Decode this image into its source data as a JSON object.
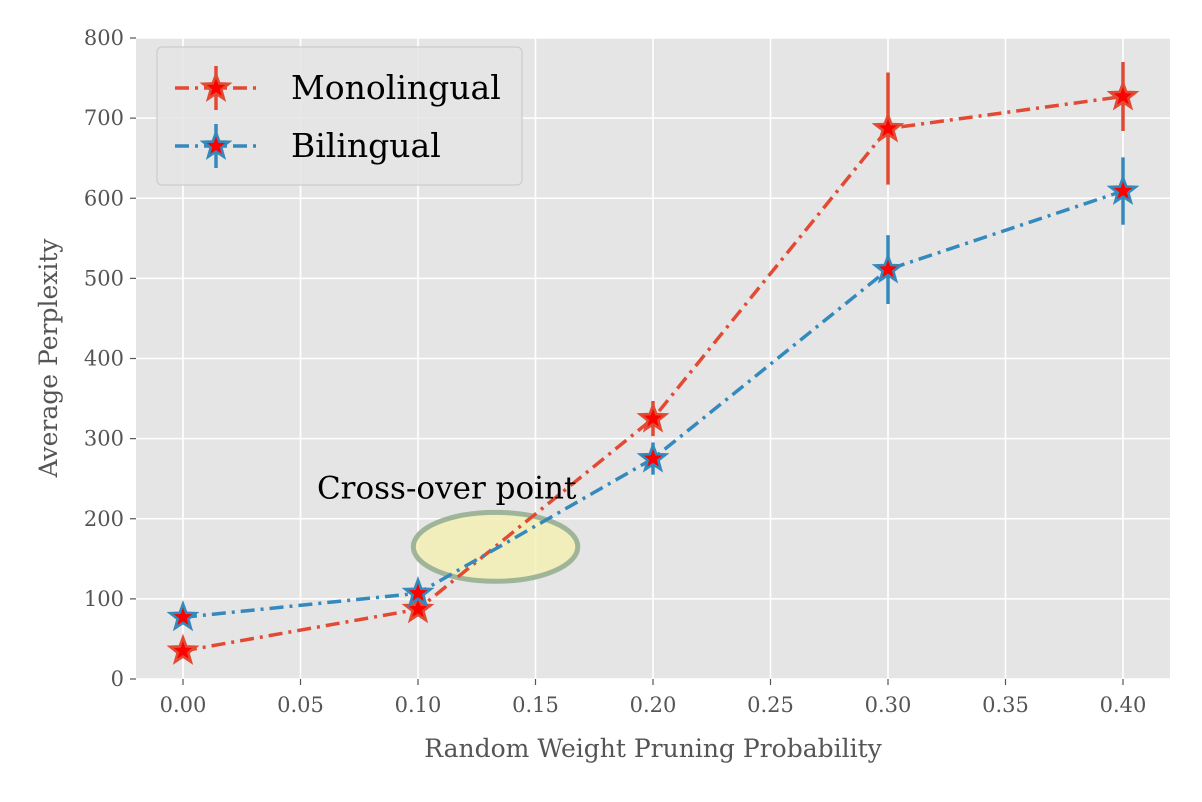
{
  "chart_data": {
    "type": "line",
    "xlabel": "Random Weight Pruning Probability",
    "ylabel": "Average Perplexity",
    "xlim": [
      -0.02,
      0.42
    ],
    "ylim": [
      0,
      800
    ],
    "x_ticks": [
      "0.00",
      "0.05",
      "0.10",
      "0.15",
      "0.20",
      "0.25",
      "0.30",
      "0.35",
      "0.40"
    ],
    "y_ticks": [
      "0",
      "100",
      "200",
      "300",
      "400",
      "500",
      "600",
      "700",
      "800"
    ],
    "grid": true,
    "legend_position": "top-left",
    "series": [
      {
        "name": "Monolingual",
        "color": "#E24A33",
        "marker": "star",
        "marker_fill": "#ff0000",
        "linestyle": "dash-dot",
        "x": [
          0.0,
          0.1,
          0.2,
          0.3,
          0.4
        ],
        "y": [
          35,
          87,
          325,
          687,
          727
        ],
        "yerr": [
          5,
          8,
          22,
          70,
          43
        ]
      },
      {
        "name": "Bilingual",
        "color": "#348ABD",
        "marker": "star",
        "marker_fill": "#ff0000",
        "linestyle": "dash-dot",
        "x": [
          0.0,
          0.1,
          0.2,
          0.3,
          0.4
        ],
        "y": [
          77,
          107,
          275,
          511,
          609
        ],
        "yerr": [
          5,
          8,
          20,
          43,
          42
        ]
      }
    ],
    "annotations": [
      {
        "text": "Cross-over point",
        "x": 0.057,
        "y": 225
      }
    ],
    "highlight_ellipse": {
      "cx": 0.133,
      "cy": 165,
      "rx": 0.035,
      "ry": 43,
      "color": "#f3f0b4"
    }
  }
}
